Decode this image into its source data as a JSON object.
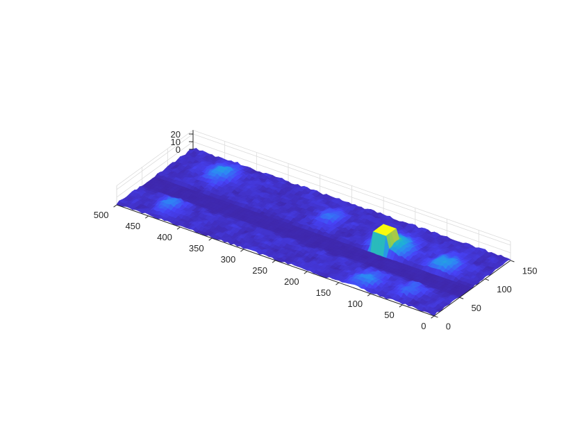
{
  "chart_data": {
    "type": "surface",
    "title": "",
    "xlabel": "",
    "ylabel": "",
    "zlabel": "",
    "grid": true,
    "colormap": "parula",
    "xlim": [
      0,
      500
    ],
    "ylim": [
      0,
      150
    ],
    "zlim": [
      0,
      25
    ],
    "x_ticks": [
      0,
      50,
      100,
      150,
      200,
      250,
      300,
      350,
      400,
      450,
      500
    ],
    "x_tick_labels": [
      "0",
      "50",
      "100",
      "150",
      "200",
      "250",
      "300",
      "350",
      "400",
      "450",
      "500"
    ],
    "y_ticks": [
      0,
      50,
      100,
      150
    ],
    "y_tick_labels": [
      "0",
      "50",
      "100",
      "150"
    ],
    "z_ticks": [
      0,
      10,
      20
    ],
    "z_tick_labels": [
      "0",
      "10",
      "20"
    ],
    "features": [
      {
        "kind": "plateau",
        "x": [
          140,
          160
        ],
        "y": [
          80,
          100
        ],
        "height": 25
      },
      {
        "kind": "mound",
        "x": 140,
        "y": 95,
        "radius": 30,
        "height": 12
      },
      {
        "kind": "mound",
        "x": 60,
        "y": 95,
        "radius": 25,
        "height": 8
      },
      {
        "kind": "mound",
        "x": 250,
        "y": 110,
        "radius": 20,
        "height": 5
      },
      {
        "kind": "mound",
        "x": 430,
        "y": 120,
        "radius": 25,
        "height": 7
      },
      {
        "kind": "mound",
        "x": 440,
        "y": 30,
        "radius": 20,
        "height": 6
      },
      {
        "kind": "mound",
        "x": 120,
        "y": 20,
        "radius": 25,
        "height": 6
      },
      {
        "kind": "mound",
        "x": 60,
        "y": 30,
        "radius": 20,
        "height": 5
      }
    ],
    "trough": {
      "y": [
        50,
        75
      ],
      "height": 0
    },
    "baseline_noise": 3
  },
  "colors": {
    "axis": "#262626",
    "grid": "#dcdcdc",
    "parula": [
      "#3e26a8",
      "#4743f7",
      "#2d88f4",
      "#1fb0d6",
      "#33c3a6",
      "#90cc50",
      "#e6c12e",
      "#f9fb0e"
    ]
  }
}
